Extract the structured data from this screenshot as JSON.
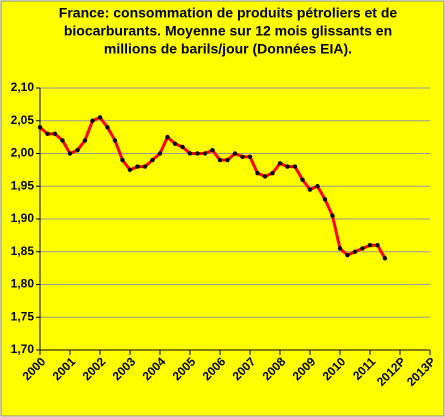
{
  "chart_data": {
    "type": "line",
    "title": [
      "France: consommation de produits pétroliers et de",
      "biocarburants. Moyenne sur 12 mois glissants en",
      "millions de barils/jour (Données  EIA)."
    ],
    "x": [
      2000.0,
      2000.25,
      2000.5,
      2000.75,
      2001.0,
      2001.25,
      2001.5,
      2001.75,
      2002.0,
      2002.25,
      2002.5,
      2002.75,
      2003.0,
      2003.25,
      2003.5,
      2003.75,
      2004.0,
      2004.25,
      2004.5,
      2004.75,
      2005.0,
      2005.25,
      2005.5,
      2005.75,
      2006.0,
      2006.25,
      2006.5,
      2006.75,
      2007.0,
      2007.25,
      2007.5,
      2007.75,
      2008.0,
      2008.25,
      2008.5,
      2008.75,
      2009.0,
      2009.25,
      2009.5,
      2009.75,
      2010.0,
      2010.25,
      2010.5,
      2010.75,
      2011.0,
      2011.25,
      2011.5
    ],
    "series": [
      {
        "color": "#ff0000",
        "marker_color": "#000000",
        "values": [
          2.04,
          2.03,
          2.03,
          2.02,
          2.0,
          2.005,
          2.02,
          2.05,
          2.055,
          2.04,
          2.02,
          1.99,
          1.975,
          1.98,
          1.98,
          1.99,
          2.0,
          2.025,
          2.015,
          2.01,
          2.0,
          2.0,
          2.0,
          2.005,
          1.99,
          1.99,
          2.0,
          1.995,
          1.995,
          1.97,
          1.965,
          1.97,
          1.985,
          1.98,
          1.98,
          1.96,
          1.945,
          1.95,
          1.93,
          1.905,
          1.855,
          1.845,
          1.85,
          1.855,
          1.86,
          1.86,
          1.84
        ]
      }
    ],
    "xlim": [
      2000,
      2013
    ],
    "xticks": [
      2000,
      2001,
      2002,
      2003,
      2004,
      2005,
      2006,
      2007,
      2008,
      2009,
      2010,
      2011,
      {
        "value": 2012,
        "label": "2012P"
      },
      {
        "value": 2013,
        "label": "2013P"
      }
    ],
    "ylim": [
      1.7,
      2.1
    ],
    "yticks": [
      {
        "value": 1.7,
        "label": "1,70"
      },
      {
        "value": 1.75,
        "label": "1,75"
      },
      {
        "value": 1.8,
        "label": "1,80"
      },
      {
        "value": 1.85,
        "label": "1,85"
      },
      {
        "value": 1.9,
        "label": "1,90"
      },
      {
        "value": 1.95,
        "label": "1,95"
      },
      {
        "value": 2.0,
        "label": "2,00"
      },
      {
        "value": 2.05,
        "label": "2,05"
      },
      {
        "value": 2.1,
        "label": "2,10"
      }
    ],
    "grid": true,
    "background": "#ffff00"
  }
}
